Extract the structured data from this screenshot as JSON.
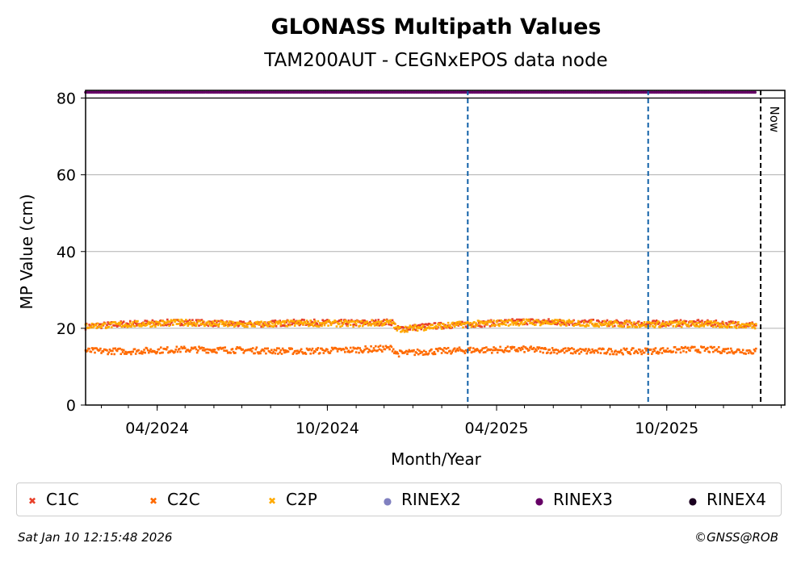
{
  "chart_data": {
    "type": "scatter",
    "title": "GLONASS Multipath Values",
    "subtitle": "TAM200AUT - CEGNxEPOS data node",
    "xlabel": "Month/Year",
    "ylabel": "MP Value (cm)",
    "ylim": [
      0,
      82
    ],
    "xlim": [
      "2024-01-15",
      "2026-02-05"
    ],
    "x_ticks": [
      {
        "date": "2024-04-01",
        "label": "04/2024"
      },
      {
        "date": "2024-10-01",
        "label": "10/2024"
      },
      {
        "date": "2025-04-01",
        "label": "04/2025"
      },
      {
        "date": "2025-10-01",
        "label": "10/2025"
      }
    ],
    "y_ticks": [
      0,
      20,
      40,
      60,
      80
    ],
    "grid": "horizontal",
    "vertical_lines": [
      {
        "date": "2025-03-01",
        "style": "dashed",
        "color": "#1060a8"
      },
      {
        "date": "2025-09-11",
        "style": "dashed",
        "color": "#1060a8"
      },
      {
        "date": "2026-01-10",
        "style": "dashed",
        "color": "#000000",
        "label": "Now"
      }
    ],
    "series": [
      {
        "name": "C1C",
        "color": "#e8402a",
        "marker": "x",
        "points": [
          [
            "2024-01-15",
            20.5
          ],
          [
            "2024-03-01",
            21.2
          ],
          [
            "2024-05-01",
            21.6
          ],
          [
            "2024-07-01",
            21.0
          ],
          [
            "2024-09-01",
            21.5
          ],
          [
            "2024-11-01",
            21.4
          ],
          [
            "2024-12-10",
            21.6
          ],
          [
            "2024-12-15",
            19.8
          ],
          [
            "2025-01-15",
            20.5
          ],
          [
            "2025-03-01",
            21.0
          ],
          [
            "2025-05-01",
            21.8
          ],
          [
            "2025-07-01",
            21.5
          ],
          [
            "2025-09-01",
            21.2
          ],
          [
            "2025-11-01",
            21.4
          ],
          [
            "2026-01-05",
            20.9
          ]
        ]
      },
      {
        "name": "C2C",
        "color": "#ff6a00",
        "marker": "x",
        "points": [
          [
            "2024-01-15",
            14.1
          ],
          [
            "2024-03-01",
            14.0
          ],
          [
            "2024-05-01",
            14.5
          ],
          [
            "2024-07-01",
            14.3
          ],
          [
            "2024-09-01",
            14.0
          ],
          [
            "2024-11-01",
            14.4
          ],
          [
            "2024-12-10",
            14.8
          ],
          [
            "2024-12-15",
            13.4
          ],
          [
            "2025-01-15",
            13.9
          ],
          [
            "2025-03-01",
            14.3
          ],
          [
            "2025-05-01",
            14.5
          ],
          [
            "2025-07-01",
            14.0
          ],
          [
            "2025-09-01",
            14.0
          ],
          [
            "2025-11-01",
            14.5
          ],
          [
            "2026-01-05",
            14.0
          ]
        ]
      },
      {
        "name": "C2P",
        "color": "#ffaa00",
        "marker": "x",
        "points": [
          [
            "2024-01-15",
            20.6
          ],
          [
            "2024-03-01",
            21.0
          ],
          [
            "2024-05-01",
            21.5
          ],
          [
            "2024-07-01",
            20.9
          ],
          [
            "2024-09-01",
            21.3
          ],
          [
            "2024-11-01",
            21.2
          ],
          [
            "2024-12-10",
            21.5
          ],
          [
            "2024-12-15",
            19.7
          ],
          [
            "2025-01-15",
            20.3
          ],
          [
            "2025-03-01",
            21.1
          ],
          [
            "2025-05-01",
            21.6
          ],
          [
            "2025-07-01",
            21.3
          ],
          [
            "2025-09-01",
            21.0
          ],
          [
            "2025-11-01",
            21.1
          ],
          [
            "2026-01-05",
            20.7
          ]
        ]
      },
      {
        "name": "RINEX2",
        "color": "#8080c0",
        "marker": "o",
        "points": []
      },
      {
        "name": "RINEX3",
        "color": "#660066",
        "marker": "o",
        "points": [
          [
            "2024-01-15",
            81.5
          ],
          [
            "2026-01-05",
            81.5
          ]
        ]
      },
      {
        "name": "RINEX4",
        "color": "#1a0020",
        "marker": "o",
        "points": []
      }
    ]
  },
  "legend_entries": [
    {
      "label": "C1C",
      "color": "#e8402a",
      "marker": "✖"
    },
    {
      "label": "C2C",
      "color": "#ff6a00",
      "marker": "✖"
    },
    {
      "label": "C2P",
      "color": "#ffaa00",
      "marker": "✖"
    },
    {
      "label": "RINEX2",
      "color": "#8080c0",
      "marker": "●"
    },
    {
      "label": "RINEX3",
      "color": "#660066",
      "marker": "●"
    },
    {
      "label": "RINEX4",
      "color": "#1a0020",
      "marker": "●"
    }
  ],
  "footer": {
    "timestamp": "Sat Jan 10 12:15:48 2026",
    "copyright": "©GNSS@ROB"
  }
}
